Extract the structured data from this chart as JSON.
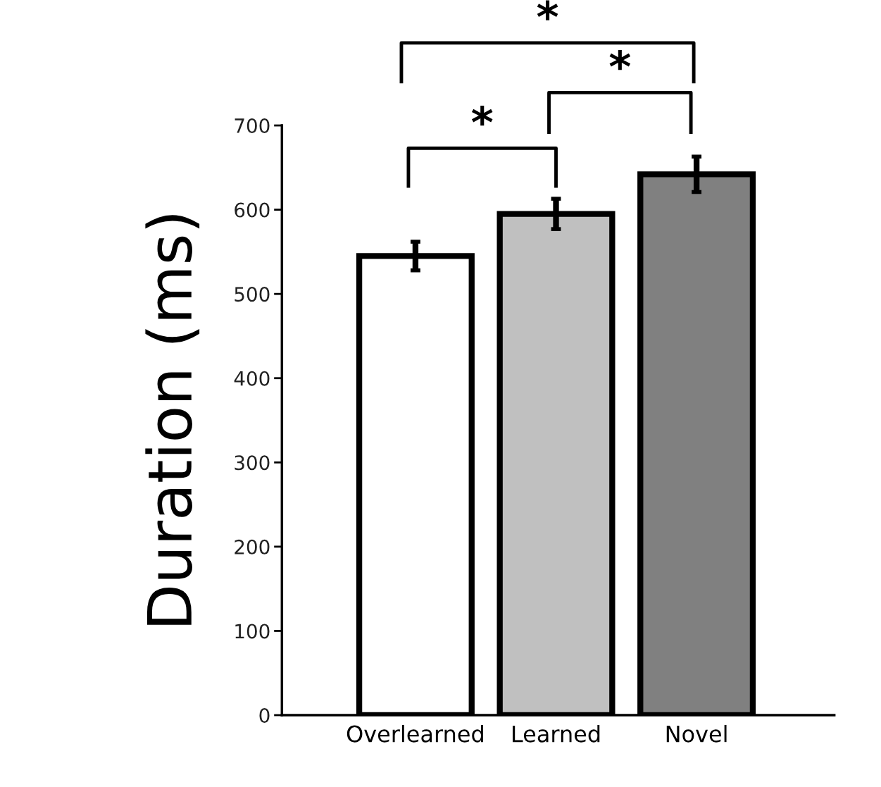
{
  "chart_data": {
    "type": "bar",
    "ylabel": "Duration (ms)",
    "categories": [
      "Overlearned",
      "Learned",
      "Novel"
    ],
    "values": [
      545,
      595,
      642
    ],
    "errors": [
      17,
      18,
      21
    ],
    "colors": [
      "#ffffff",
      "#c0c0c0",
      "#808080"
    ],
    "ylim": [
      0,
      700
    ],
    "yticks": [
      0,
      100,
      200,
      300,
      400,
      500,
      600,
      700
    ],
    "grid": false,
    "annotations": [
      "*",
      "*",
      "*"
    ]
  }
}
